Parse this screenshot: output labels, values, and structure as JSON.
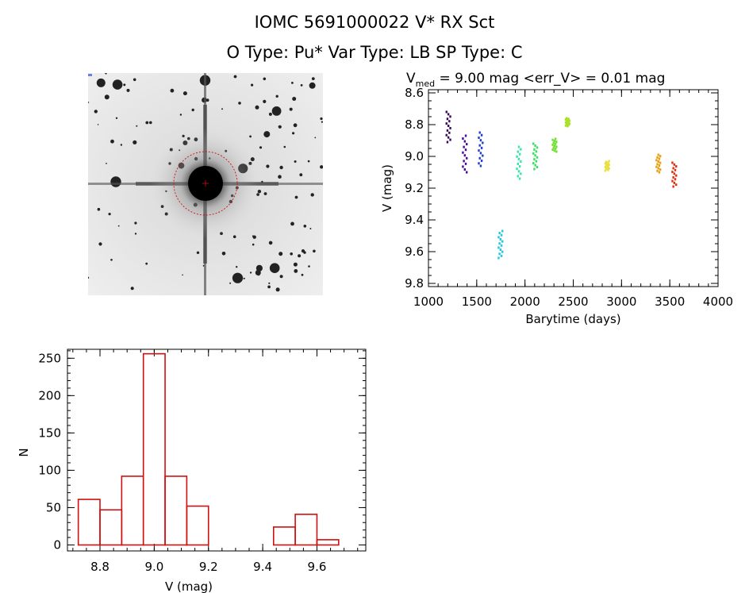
{
  "header": {
    "line1": "IOMC 5691000022   V* RX Sct",
    "line2": "O Type: Pu*  Var Type: LB  SP Type: C"
  },
  "lightcurve": {
    "title_prefix": "V",
    "title_sub": "med",
    "title_rest": " = 9.00 mag <err_V> = 0.01 mag"
  },
  "chart_data": [
    {
      "type": "scatter",
      "title": "Vmed = 9.00 mag <err_V> = 0.01 mag",
      "xlabel": "Barytime (days)",
      "ylabel": "V (mag)",
      "xlim": [
        1000,
        4000
      ],
      "ylim": [
        9.82,
        8.58
      ],
      "xticks": [
        1000,
        1500,
        2000,
        2500,
        3000,
        3500,
        4000
      ],
      "yticks": [
        8.6,
        8.8,
        9.0,
        9.2,
        9.4,
        9.6,
        9.8
      ],
      "ytick_labels": [
        "8.6",
        "8.8",
        "9.0",
        "9.2",
        "9.4",
        "9.6",
        "9.8"
      ],
      "groups": [
        {
          "x": 1205,
          "ymin": 8.72,
          "ymax": 8.91,
          "color": "#3a0a5a"
        },
        {
          "x": 1375,
          "ymin": 8.87,
          "ymax": 9.1,
          "color": "#4b0a9a"
        },
        {
          "x": 1540,
          "ymin": 8.85,
          "ymax": 9.06,
          "color": "#1f3fd0"
        },
        {
          "x": 1745,
          "ymin": 9.47,
          "ymax": 9.64,
          "color": "#1fc8e0"
        },
        {
          "x": 1935,
          "ymin": 8.94,
          "ymax": 9.14,
          "color": "#30e8a8"
        },
        {
          "x": 2105,
          "ymin": 8.92,
          "ymax": 9.08,
          "color": "#38e060"
        },
        {
          "x": 2305,
          "ymin": 8.89,
          "ymax": 8.97,
          "color": "#70e030"
        },
        {
          "x": 2440,
          "ymin": 8.76,
          "ymax": 8.81,
          "color": "#a8e028"
        },
        {
          "x": 2850,
          "ymin": 9.03,
          "ymax": 9.09,
          "color": "#e8e040"
        },
        {
          "x": 3380,
          "ymin": 8.99,
          "ymax": 9.1,
          "color": "#e8a010"
        },
        {
          "x": 3545,
          "ymin": 9.04,
          "ymax": 9.19,
          "color": "#e03010"
        }
      ]
    },
    {
      "type": "bar",
      "title": "",
      "xlabel": "V (mag)",
      "ylabel": "N",
      "xlim": [
        8.68,
        9.78
      ],
      "ylim": [
        -8,
        262
      ],
      "xticks": [
        8.8,
        9.0,
        9.2,
        9.4,
        9.6
      ],
      "xtick_labels": [
        "8.8",
        "9.0",
        "9.2",
        "9.4",
        "9.6"
      ],
      "yticks": [
        0,
        50,
        100,
        150,
        200,
        250
      ],
      "bin_edges": [
        8.72,
        8.8,
        8.88,
        8.96,
        9.04,
        9.12,
        9.2,
        9.28,
        9.36,
        9.44,
        9.52,
        9.6,
        9.68
      ],
      "values": [
        61,
        47,
        92,
        256,
        92,
        52,
        0,
        0,
        0,
        24,
        41,
        7
      ],
      "color": "#d01010"
    }
  ]
}
